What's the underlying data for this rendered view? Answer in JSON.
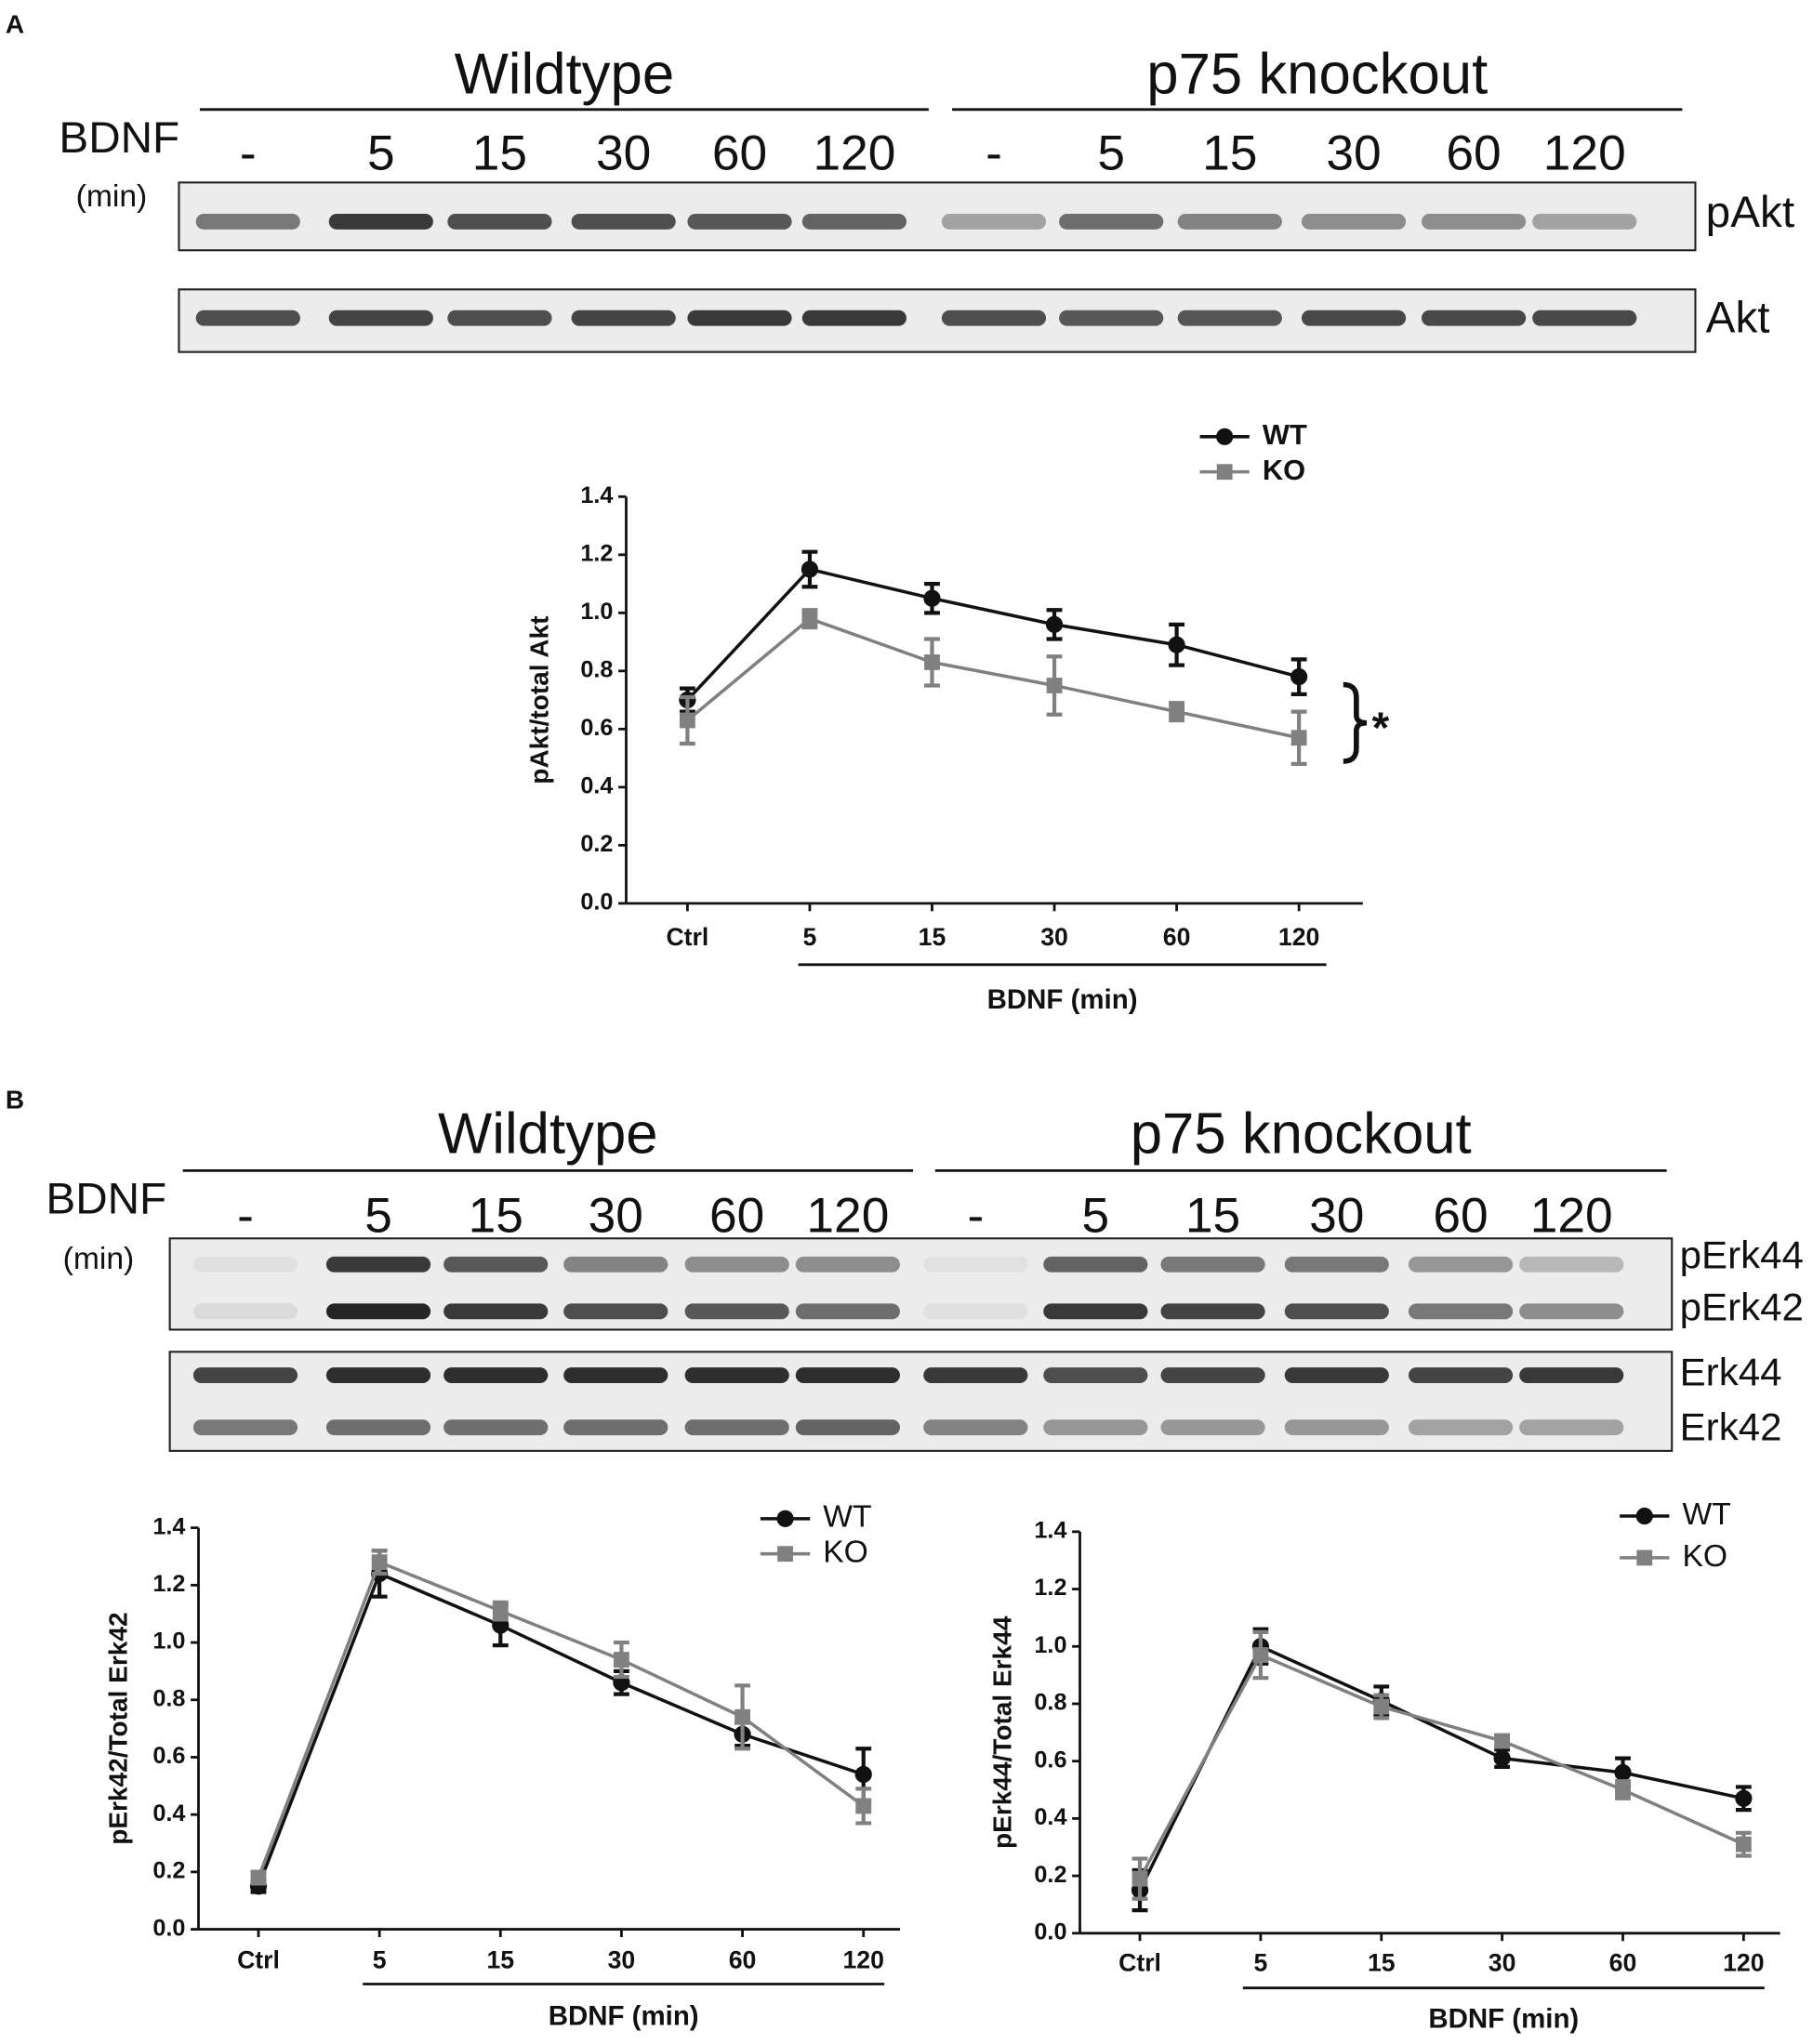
{
  "blots": [
    {
      "panel": "A",
      "groups": [
        "Wildtype",
        "p75 knockout"
      ],
      "row_label": "BDNF",
      "unit": "(min)",
      "lanes": [
        "-",
        "5",
        "15",
        "30",
        "60",
        "120",
        "-",
        "5",
        "15",
        "30",
        "60",
        "120"
      ],
      "bands": [
        "pAkt",
        "Akt"
      ]
    },
    {
      "panel": "B",
      "groups": [
        "Wildtype",
        "p75 knockout"
      ],
      "row_label": "BDNF",
      "unit": "(min)",
      "lanes": [
        "-",
        "5",
        "15",
        "30",
        "60",
        "120",
        "-",
        "5",
        "15",
        "30",
        "60",
        "120"
      ],
      "bands": [
        "pErk44",
        "pErk42",
        "Erk44",
        "Erk42"
      ]
    }
  ],
  "chart_data": [
    {
      "type": "line",
      "y_label": "pAkt/total Akt",
      "x_label": "BDNF (min)",
      "annotation": "*",
      "legend": "top",
      "categories": [
        "Ctrl",
        "5",
        "15",
        "30",
        "60",
        "120"
      ],
      "ylim": [
        0,
        1.4
      ],
      "yticks": [
        {
          "value": 0,
          "label": "0.0"
        },
        {
          "value": 0.2,
          "label": "0.2"
        },
        {
          "value": 0.4,
          "label": "0.4"
        },
        {
          "value": 0.6,
          "label": "0.6"
        },
        {
          "value": 0.8,
          "label": "0.8"
        },
        {
          "value": 1,
          "label": "1.0"
        },
        {
          "value": 1.2,
          "label": "1.2"
        },
        {
          "value": 1.4,
          "label": "1.4"
        }
      ],
      "series": [
        {
          "name": "WT",
          "color": "#111111",
          "marker": "circle",
          "values": [
            0.7,
            1.15,
            1.05,
            0.96,
            0.89,
            0.78
          ],
          "errors": [
            0.04,
            0.06,
            0.05,
            0.05,
            0.07,
            0.06
          ]
        },
        {
          "name": "KO",
          "color": "#808080",
          "marker": "square",
          "values": [
            0.63,
            0.98,
            0.83,
            0.75,
            0.66,
            0.57
          ],
          "errors": [
            0.08,
            0.03,
            0.08,
            0.1,
            0.03,
            0.09
          ]
        }
      ]
    },
    {
      "type": "line",
      "y_label": "pErk42/Total Erk42",
      "x_label": "BDNF (min)",
      "legend": "top-right",
      "categories": [
        "Ctrl",
        "5",
        "15",
        "30",
        "60",
        "120"
      ],
      "ylim": [
        0,
        1.4
      ],
      "yticks": [
        {
          "value": 0,
          "label": "0.0"
        },
        {
          "value": 0.2,
          "label": "0.2"
        },
        {
          "value": 0.4,
          "label": "0.4"
        },
        {
          "value": 0.6,
          "label": "0.6"
        },
        {
          "value": 0.8,
          "label": "0.8"
        },
        {
          "value": 1,
          "label": "1.0"
        },
        {
          "value": 1.2,
          "label": "1.2"
        },
        {
          "value": 1.4,
          "label": "1.4"
        }
      ],
      "series": [
        {
          "name": "WT",
          "color": "#111111",
          "marker": "circle",
          "values": [
            0.15,
            1.24,
            1.06,
            0.86,
            0.68,
            0.54
          ],
          "errors": [
            0.02,
            0.08,
            0.07,
            0.04,
            0.04,
            0.09
          ]
        },
        {
          "name": "KO",
          "color": "#808080",
          "marker": "square",
          "values": [
            0.18,
            1.28,
            1.11,
            0.94,
            0.74,
            0.43
          ],
          "errors": [
            0.02,
            0.04,
            0.03,
            0.06,
            0.11,
            0.06
          ]
        }
      ]
    },
    {
      "type": "line",
      "y_label": "pErk44/Total Erk44",
      "x_label": "BDNF (min)",
      "legend": "top-right",
      "categories": [
        "Ctrl",
        "5",
        "15",
        "30",
        "60",
        "120"
      ],
      "ylim": [
        0,
        1.4
      ],
      "yticks": [
        {
          "value": 0,
          "label": "0.0"
        },
        {
          "value": 0.2,
          "label": "0.2"
        },
        {
          "value": 0.4,
          "label": "0.4"
        },
        {
          "value": 0.6,
          "label": "0.6"
        },
        {
          "value": 0.8,
          "label": "0.8"
        },
        {
          "value": 1,
          "label": "1.0"
        },
        {
          "value": 1.2,
          "label": "1.2"
        },
        {
          "value": 1.4,
          "label": "1.4"
        }
      ],
      "series": [
        {
          "name": "WT",
          "color": "#111111",
          "marker": "circle",
          "values": [
            0.15,
            1.0,
            0.81,
            0.61,
            0.56,
            0.47
          ],
          "errors": [
            0.07,
            0.06,
            0.05,
            0.03,
            0.05,
            0.04
          ]
        },
        {
          "name": "KO",
          "color": "#808080",
          "marker": "square",
          "values": [
            0.19,
            0.97,
            0.79,
            0.67,
            0.5,
            0.31
          ],
          "errors": [
            0.07,
            0.08,
            0.04,
            0.02,
            0.03,
            0.04
          ]
        }
      ]
    }
  ]
}
